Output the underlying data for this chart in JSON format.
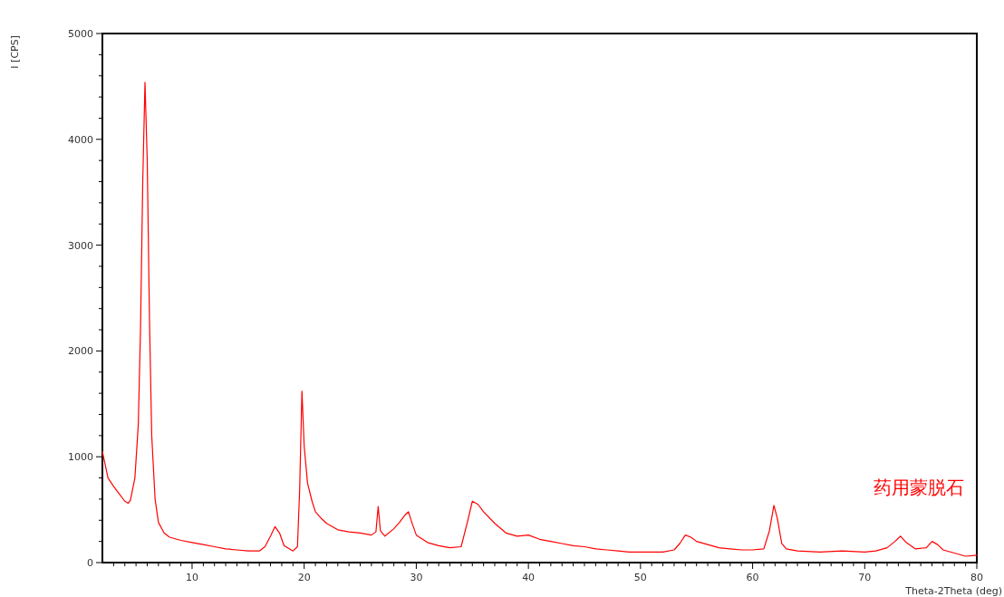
{
  "chart_data": {
    "type": "line",
    "xlabel": "Theta-2Theta (deg)",
    "ylabel": "I [CPS]",
    "annotations": [
      "药用蒙脱石"
    ],
    "grid": false,
    "marker": "none",
    "line_style": "solid",
    "xlim": [
      2,
      80
    ],
    "ylim": [
      0,
      5000
    ],
    "xticks": [
      {
        "value": 3,
        "label": null
      },
      {
        "value": 4,
        "label": null
      },
      {
        "value": 5,
        "label": null
      },
      {
        "value": 6,
        "label": null
      },
      {
        "value": 7,
        "label": null
      },
      {
        "value": 8,
        "label": null
      },
      {
        "value": 9,
        "label": null
      },
      10,
      {
        "value": 11,
        "label": null
      },
      {
        "value": 12,
        "label": null
      },
      {
        "value": 13,
        "label": null
      },
      {
        "value": 14,
        "label": null
      },
      {
        "value": 15,
        "label": null
      },
      {
        "value": 16,
        "label": null
      },
      {
        "value": 17,
        "label": null
      },
      {
        "value": 18,
        "label": null
      },
      {
        "value": 19,
        "label": null
      },
      20,
      {
        "value": 21,
        "label": null
      },
      {
        "value": 22,
        "label": null
      },
      {
        "value": 23,
        "label": null
      },
      {
        "value": 24,
        "label": null
      },
      {
        "value": 25,
        "label": null
      },
      {
        "value": 26,
        "label": null
      },
      {
        "value": 27,
        "label": null
      },
      {
        "value": 28,
        "label": null
      },
      {
        "value": 29,
        "label": null
      },
      30,
      {
        "value": 31,
        "label": null
      },
      {
        "value": 32,
        "label": null
      },
      {
        "value": 33,
        "label": null
      },
      {
        "value": 34,
        "label": null
      },
      {
        "value": 35,
        "label": null
      },
      {
        "value": 36,
        "label": null
      },
      {
        "value": 37,
        "label": null
      },
      {
        "value": 38,
        "label": null
      },
      {
        "value": 39,
        "label": null
      },
      40,
      {
        "value": 41,
        "label": null
      },
      {
        "value": 42,
        "label": null
      },
      {
        "value": 43,
        "label": null
      },
      {
        "value": 44,
        "label": null
      },
      {
        "value": 45,
        "label": null
      },
      {
        "value": 46,
        "label": null
      },
      {
        "value": 47,
        "label": null
      },
      {
        "value": 48,
        "label": null
      },
      {
        "value": 49,
        "label": null
      },
      50,
      {
        "value": 51,
        "label": null
      },
      {
        "value": 52,
        "label": null
      },
      {
        "value": 53,
        "label": null
      },
      {
        "value": 54,
        "label": null
      },
      {
        "value": 55,
        "label": null
      },
      {
        "value": 56,
        "label": null
      },
      {
        "value": 57,
        "label": null
      },
      {
        "value": 58,
        "label": null
      },
      {
        "value": 59,
        "label": null
      },
      60,
      {
        "value": 61,
        "label": null
      },
      {
        "value": 62,
        "label": null
      },
      {
        "value": 63,
        "label": null
      },
      {
        "value": 64,
        "label": null
      },
      {
        "value": 65,
        "label": null
      },
      {
        "value": 66,
        "label": null
      },
      {
        "value": 67,
        "label": null
      },
      {
        "value": 68,
        "label": null
      },
      {
        "value": 69,
        "label": null
      },
      70,
      {
        "value": 71,
        "label": null
      },
      {
        "value": 72,
        "label": null
      },
      {
        "value": 73,
        "label": null
      },
      {
        "value": 74,
        "label": null
      },
      {
        "value": 75,
        "label": null
      },
      {
        "value": 76,
        "label": null
      },
      {
        "value": 77,
        "label": null
      },
      {
        "value": 78,
        "label": null
      },
      {
        "value": 79,
        "label": null
      },
      80
    ],
    "yticks": [
      0,
      {
        "value": 200,
        "label": null
      },
      {
        "value": 400,
        "label": null
      },
      {
        "value": 600,
        "label": null
      },
      {
        "value": 800,
        "label": null
      },
      1000,
      {
        "value": 1200,
        "label": null
      },
      {
        "value": 1400,
        "label": null
      },
      {
        "value": 1600,
        "label": null
      },
      {
        "value": 1800,
        "label": null
      },
      2000,
      {
        "value": 2200,
        "label": null
      },
      {
        "value": 2400,
        "label": null
      },
      {
        "value": 2600,
        "label": null
      },
      {
        "value": 2800,
        "label": null
      },
      3000,
      {
        "value": 3200,
        "label": null
      },
      {
        "value": 3400,
        "label": null
      },
      {
        "value": 3600,
        "label": null
      },
      {
        "value": 3800,
        "label": null
      },
      4000,
      {
        "value": 4200,
        "label": null
      },
      {
        "value": 4400,
        "label": null
      },
      {
        "value": 4600,
        "label": null
      },
      {
        "value": 4800,
        "label": null
      },
      5000
    ],
    "series": [
      {
        "color": "#ff0000",
        "x": [
          2,
          2.5,
          3,
          3.5,
          4,
          4.3,
          4.5,
          4.9,
          5.2,
          5.4,
          5.6,
          5.8,
          6,
          6.2,
          6.4,
          6.7,
          7,
          7.5,
          8,
          9,
          10,
          11,
          12,
          13,
          14,
          15,
          16,
          16.5,
          17,
          17.4,
          17.8,
          18.2,
          19,
          19.4,
          19.6,
          19.8,
          20,
          20.3,
          20.7,
          21,
          21.5,
          22,
          22.5,
          23,
          24,
          25,
          26,
          26.4,
          26.6,
          26.8,
          27.2,
          28,
          28.5,
          29,
          29.3,
          29.6,
          30,
          31,
          32,
          33,
          34,
          34.6,
          35,
          35.5,
          36,
          37,
          38,
          39,
          40,
          41,
          42,
          43,
          44,
          45,
          46,
          47,
          48,
          49,
          50,
          51,
          52,
          53,
          53.5,
          54,
          54.5,
          55,
          56,
          57,
          58,
          59,
          60,
          61,
          61.5,
          61.9,
          62.2,
          62.6,
          63,
          64,
          66,
          68,
          70,
          71,
          72,
          72.7,
          73.2,
          73.7,
          74.5,
          75.5,
          76,
          76.5,
          77,
          78,
          79,
          80
        ],
        "values": [
          1050,
          800,
          720,
          650,
          580,
          560,
          590,
          800,
          1300,
          2200,
          3600,
          4540,
          3800,
          2300,
          1200,
          600,
          380,
          280,
          240,
          210,
          190,
          170,
          150,
          130,
          120,
          110,
          110,
          150,
          250,
          340,
          280,
          160,
          110,
          150,
          700,
          1620,
          1100,
          750,
          580,
          480,
          420,
          370,
          340,
          310,
          290,
          280,
          260,
          290,
          530,
          300,
          250,
          320,
          380,
          450,
          480,
          380,
          260,
          190,
          160,
          140,
          150,
          400,
          580,
          550,
          480,
          370,
          280,
          250,
          260,
          220,
          200,
          180,
          160,
          150,
          130,
          120,
          110,
          100,
          100,
          100,
          100,
          120,
          180,
          260,
          240,
          200,
          170,
          140,
          130,
          120,
          120,
          130,
          300,
          540,
          420,
          180,
          130,
          110,
          100,
          110,
          100,
          110,
          140,
          200,
          250,
          190,
          130,
          140,
          200,
          170,
          120,
          90,
          60,
          70
        ]
      }
    ]
  }
}
